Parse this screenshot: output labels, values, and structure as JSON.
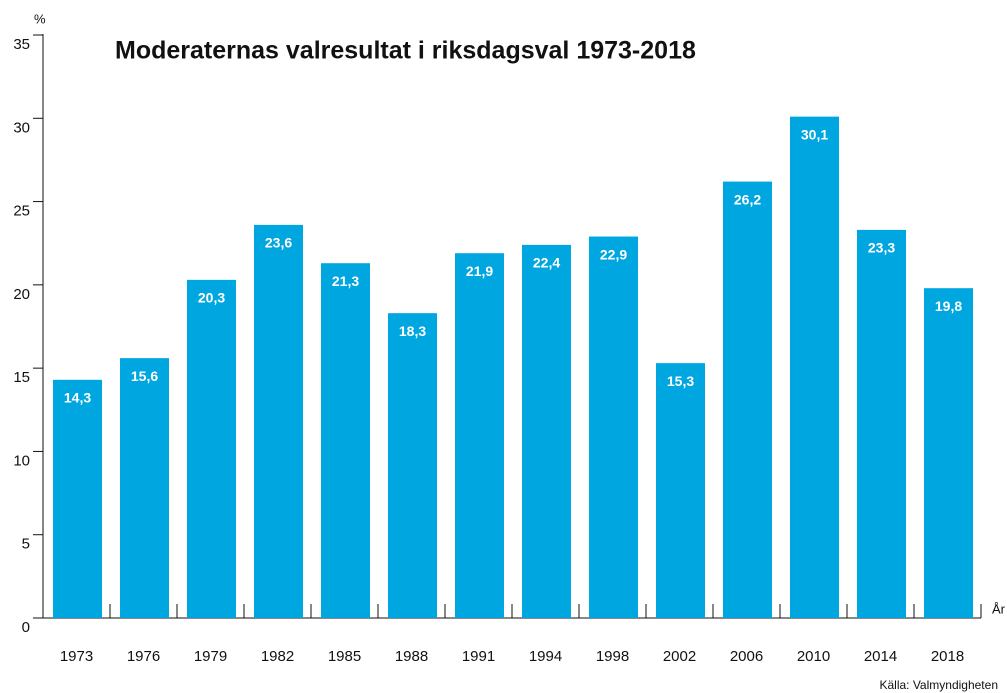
{
  "chart_data": {
    "type": "bar",
    "title": "Moderaternas valresultat i riksdagsval 1973-2018",
    "y_axis_label": "%",
    "x_axis_label": "År",
    "source": "Källa: Valmyndigheten",
    "categories": [
      "1973",
      "1976",
      "1979",
      "1982",
      "1985",
      "1988",
      "1991",
      "1994",
      "1998",
      "2002",
      "2006",
      "2010",
      "2014",
      "2018"
    ],
    "values": [
      14.3,
      15.6,
      20.3,
      23.6,
      21.3,
      18.3,
      21.9,
      22.4,
      22.9,
      15.3,
      26.2,
      30.1,
      23.3,
      19.8
    ],
    "value_labels": [
      "14,3",
      "15,6",
      "20,3",
      "23,6",
      "21,3",
      "18,3",
      "21,9",
      "22,4",
      "22,9",
      "15,3",
      "26,2",
      "30,1",
      "23,3",
      "19,8"
    ],
    "color": "#00a6e0",
    "ylim": [
      0,
      35
    ],
    "yticks": [
      0,
      5,
      10,
      15,
      20,
      25,
      30,
      35
    ],
    "grid": false
  }
}
